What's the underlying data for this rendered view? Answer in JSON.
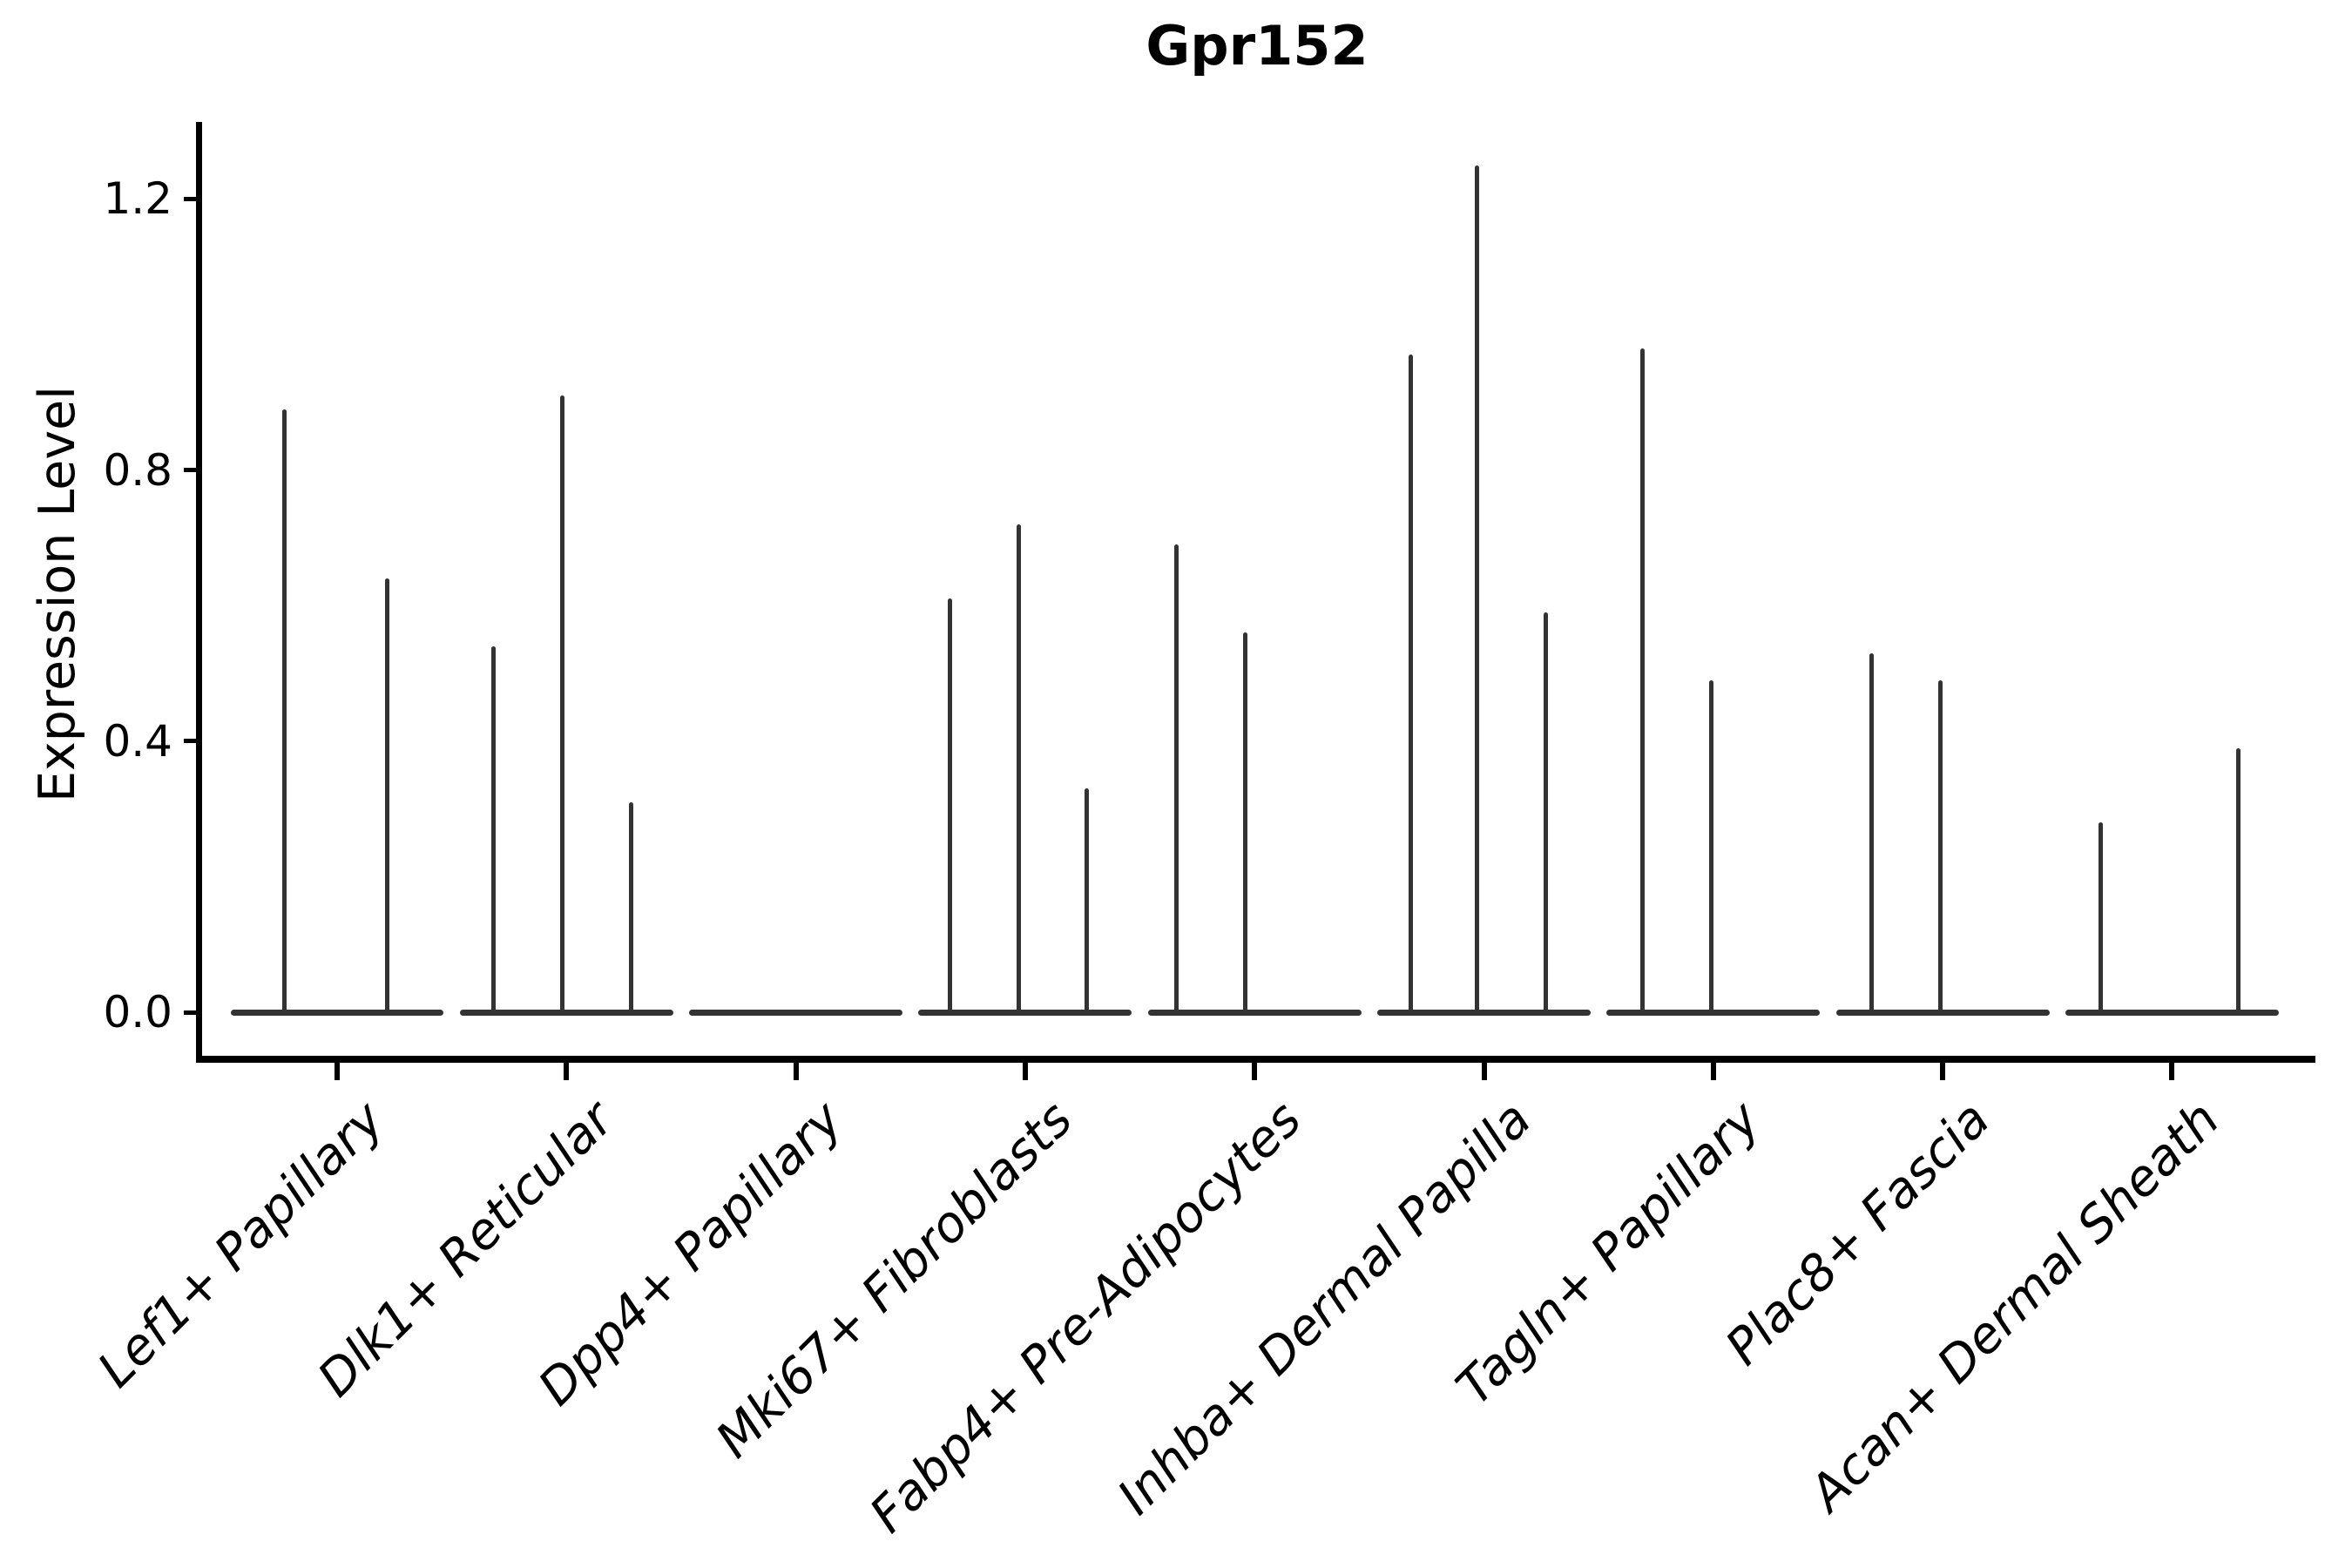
{
  "figure": {
    "background": "#ffffff",
    "line_color": "#333333",
    "axis_color": "#000000",
    "text_color": "#000000"
  },
  "chart_data": {
    "type": "violin",
    "title": "Gpr152",
    "xlabel": "",
    "ylabel": "Expression Level",
    "ytick_labels": [
      "0.0",
      "0.4",
      "0.8",
      "1.2"
    ],
    "ytick_values": [
      0.0,
      0.4,
      0.8,
      1.2
    ],
    "ylim": [
      -0.04,
      1.32
    ],
    "grid": false,
    "legend_position": "none",
    "categories": [
      "Lef1+ Papillary",
      "Dlk1+ Reticular",
      "Dpp4+ Papillary",
      "Mki67+ Fibroblasts",
      "Fabp4+ Pre-Adipocytes",
      "Inhba+ Dermal Papilla",
      "Tagln+ Papillary",
      "Plac8+ Fascia",
      "Acan+ Dermal Sheath"
    ],
    "baseline_value": 0.0,
    "baseline_halfwidth_frac": 0.465,
    "series": [
      {
        "name": "Lef1+ Papillary",
        "spikes": [
          {
            "offset": -0.23,
            "max": 0.89
          },
          {
            "offset": 0.22,
            "max": 0.64
          }
        ]
      },
      {
        "name": "Dlk1+ Reticular",
        "spikes": [
          {
            "offset": -0.32,
            "max": 0.54
          },
          {
            "offset": -0.02,
            "max": 0.91
          },
          {
            "offset": 0.28,
            "max": 0.31
          }
        ]
      },
      {
        "name": "Dpp4+ Papillary",
        "spikes": []
      },
      {
        "name": "Mki67+ Fibroblasts",
        "spikes": [
          {
            "offset": -0.33,
            "max": 0.61
          },
          {
            "offset": -0.03,
            "max": 0.72
          },
          {
            "offset": 0.27,
            "max": 0.33
          }
        ]
      },
      {
        "name": "Fabp4+ Pre-Adipocytes",
        "spikes": [
          {
            "offset": -0.34,
            "max": 0.69
          },
          {
            "offset": -0.04,
            "max": 0.56
          }
        ]
      },
      {
        "name": "Inhba+ Dermal Papilla",
        "spikes": [
          {
            "offset": -0.32,
            "max": 0.97
          },
          {
            "offset": -0.03,
            "max": 1.25
          },
          {
            "offset": 0.27,
            "max": 0.59
          }
        ]
      },
      {
        "name": "Tagln+ Papillary",
        "spikes": [
          {
            "offset": -0.31,
            "max": 0.98
          },
          {
            "offset": -0.01,
            "max": 0.49
          }
        ]
      },
      {
        "name": "Plac8+ Fascia",
        "spikes": [
          {
            "offset": -0.31,
            "max": 0.53
          },
          {
            "offset": -0.01,
            "max": 0.49
          }
        ]
      },
      {
        "name": "Acan+ Dermal Sheath",
        "spikes": [
          {
            "offset": -0.31,
            "max": 0.28
          },
          {
            "offset": 0.29,
            "max": 0.39
          }
        ]
      }
    ]
  }
}
